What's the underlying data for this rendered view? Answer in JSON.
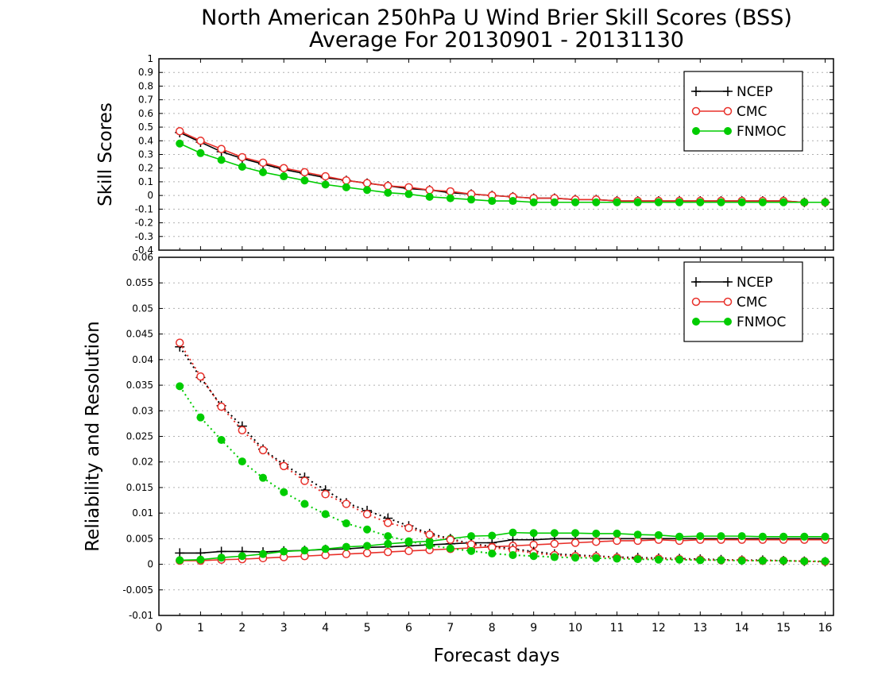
{
  "title_line1": "North American 250hPa U Wind Brier Skill Scores (BSS)",
  "title_line2": "Average For 20130901 - 20131130",
  "xlabel": "Forecast days",
  "colors": {
    "NCEP": "#000000",
    "CMC": "#e8302a",
    "FNMOC": "#00cc00",
    "grid": "#b0b0b0"
  },
  "chart_data": [
    {
      "type": "line",
      "ylabel": "Skill Scores",
      "xlim": [
        0,
        16.2
      ],
      "ylim": [
        -0.4,
        1
      ],
      "x_ticks": [
        0,
        1,
        2,
        3,
        4,
        5,
        6,
        7,
        8,
        9,
        10,
        11,
        12,
        13,
        14,
        15,
        16
      ],
      "y_ticks": [
        -0.4,
        -0.3,
        -0.2,
        -0.1,
        0,
        0.1,
        0.2,
        0.3,
        0.4,
        0.5,
        0.6,
        0.7,
        0.8,
        0.9,
        1
      ],
      "y_tick_labels": [
        "-0.4",
        "-0.3",
        "-0.2",
        "-0.1",
        "0",
        "0.1",
        "0.2",
        "0.3",
        "0.4",
        "0.5",
        "0.6",
        "0.7",
        "0.8",
        "0.9",
        "1"
      ],
      "grid": true,
      "legend": "top-right",
      "x": [
        0.5,
        1,
        1.5,
        2,
        2.5,
        3,
        3.5,
        4,
        4.5,
        5,
        5.5,
        6,
        6.5,
        7,
        7.5,
        8,
        8.5,
        9,
        9.5,
        10,
        10.5,
        11,
        11.5,
        12,
        12.5,
        13,
        13.5,
        14,
        14.5,
        15,
        15.5,
        16
      ],
      "series": [
        {
          "name": "NCEP",
          "marker": "plus",
          "dash": "none",
          "values": [
            0.46,
            0.39,
            0.32,
            0.27,
            0.23,
            0.19,
            0.16,
            0.13,
            0.11,
            0.09,
            0.07,
            0.05,
            0.04,
            0.02,
            0.01,
            0,
            -0.01,
            -0.02,
            -0.02,
            -0.03,
            -0.03,
            -0.04,
            -0.04,
            -0.04,
            -0.04,
            -0.04,
            -0.04,
            -0.04,
            -0.04,
            -0.04,
            -0.05,
            -0.05
          ]
        },
        {
          "name": "CMC",
          "marker": "circle-open",
          "dash": "none",
          "values": [
            0.47,
            0.4,
            0.34,
            0.28,
            0.24,
            0.2,
            0.17,
            0.14,
            0.11,
            0.09,
            0.07,
            0.06,
            0.04,
            0.03,
            0.01,
            0,
            -0.01,
            -0.02,
            -0.02,
            -0.03,
            -0.03,
            -0.04,
            -0.04,
            -0.04,
            -0.04,
            -0.04,
            -0.04,
            -0.04,
            -0.04,
            -0.04,
            -0.05,
            -0.05
          ]
        },
        {
          "name": "FNMOC",
          "marker": "circle-filled",
          "dash": "none",
          "values": [
            0.38,
            0.31,
            0.26,
            0.21,
            0.17,
            0.14,
            0.11,
            0.08,
            0.06,
            0.04,
            0.02,
            0.01,
            -0.01,
            -0.02,
            -0.03,
            -0.04,
            -0.04,
            -0.05,
            -0.05,
            -0.05,
            -0.05,
            -0.05,
            -0.05,
            -0.05,
            -0.05,
            -0.05,
            -0.05,
            -0.05,
            -0.05,
            -0.05,
            -0.05,
            -0.05
          ]
        }
      ]
    },
    {
      "type": "line",
      "ylabel": "Reliability and Resolution",
      "xlim": [
        0,
        16.2
      ],
      "ylim": [
        -0.01,
        0.06
      ],
      "x_ticks": [
        0,
        1,
        2,
        3,
        4,
        5,
        6,
        7,
        8,
        9,
        10,
        11,
        12,
        13,
        14,
        15,
        16
      ],
      "y_ticks": [
        -0.01,
        -0.005,
        0,
        0.005,
        0.01,
        0.015,
        0.02,
        0.025,
        0.03,
        0.035,
        0.04,
        0.045,
        0.05,
        0.055,
        0.06
      ],
      "y_tick_labels": [
        "-0.01",
        "-0.005",
        "0",
        "0.005",
        "0.01",
        "0.015",
        "0.02",
        "0.025",
        "0.03",
        "0.035",
        "0.04",
        "0.045",
        "0.05",
        "0.055",
        "0.06"
      ],
      "grid": true,
      "legend": "top-right",
      "x": [
        0.5,
        1,
        1.5,
        2,
        2.5,
        3,
        3.5,
        4,
        4.5,
        5,
        5.5,
        6,
        6.5,
        7,
        7.5,
        8,
        8.5,
        9,
        9.5,
        10,
        10.5,
        11,
        11.5,
        12,
        12.5,
        13,
        13.5,
        14,
        14.5,
        15,
        15.5,
        16
      ],
      "series": [
        {
          "name": "NCEP",
          "marker": "plus",
          "dash": "none",
          "values": [
            0.0022,
            0.0022,
            0.0025,
            0.0025,
            0.0024,
            0.0026,
            0.0027,
            0.0029,
            0.003,
            0.0033,
            0.0034,
            0.0036,
            0.0038,
            0.004,
            0.0042,
            0.0042,
            0.0048,
            0.0048,
            0.005,
            0.005,
            0.005,
            0.005,
            0.005,
            0.005,
            0.005,
            0.005,
            0.005,
            0.005,
            0.005,
            0.005,
            0.005,
            0.005
          ]
        },
        {
          "name": "CMC",
          "marker": "circle-open",
          "dash": "none",
          "values": [
            0.0007,
            0.0007,
            0.0009,
            0.001,
            0.0012,
            0.0014,
            0.0016,
            0.0018,
            0.002,
            0.0022,
            0.0024,
            0.0026,
            0.0028,
            0.003,
            0.0032,
            0.0034,
            0.0036,
            0.0038,
            0.004,
            0.0042,
            0.0044,
            0.0046,
            0.0046,
            0.0048,
            0.0046,
            0.0048,
            0.0048,
            0.0048,
            0.0048,
            0.0048,
            0.0048,
            0.0048
          ]
        },
        {
          "name": "FNMOC",
          "marker": "circle-filled",
          "dash": "none",
          "values": [
            0.0008,
            0.0009,
            0.0013,
            0.0016,
            0.002,
            0.0025,
            0.0027,
            0.003,
            0.0034,
            0.0036,
            0.004,
            0.0043,
            0.0045,
            0.005,
            0.0055,
            0.0056,
            0.0062,
            0.0061,
            0.0061,
            0.0061,
            0.006,
            0.006,
            0.0058,
            0.0057,
            0.0054,
            0.0055,
            0.0055,
            0.0055,
            0.0054,
            0.0054,
            0.0054,
            0.0054
          ]
        },
        {
          "name": "NCEP",
          "marker": "plus",
          "dash": "dotted",
          "values": [
            0.0425,
            0.0365,
            0.031,
            0.027,
            0.0225,
            0.0195,
            0.017,
            0.0145,
            0.012,
            0.0105,
            0.009,
            0.0075,
            0.006,
            0.005,
            0.004,
            0.0035,
            0.003,
            0.0025,
            0.002,
            0.0018,
            0.0016,
            0.0014,
            0.0013,
            0.0012,
            0.0011,
            0.001,
            0.0009,
            0.0008,
            0.0008,
            0.0007,
            0.0006,
            0.0005
          ]
        },
        {
          "name": "CMC",
          "marker": "circle-open",
          "dash": "dotted",
          "values": [
            0.0433,
            0.0367,
            0.0308,
            0.0262,
            0.0223,
            0.0192,
            0.0163,
            0.0137,
            0.0118,
            0.0098,
            0.0081,
            0.0071,
            0.0058,
            0.0048,
            0.0039,
            0.0033,
            0.0028,
            0.0022,
            0.0018,
            0.0016,
            0.0015,
            0.0013,
            0.0011,
            0.0011,
            0.001,
            0.0009,
            0.0008,
            0.0008,
            0.0007,
            0.0007,
            0.0006,
            0.0005
          ]
        },
        {
          "name": "FNMOC",
          "marker": "circle-filled",
          "dash": "dotted",
          "values": [
            0.0348,
            0.0287,
            0.0243,
            0.0201,
            0.0169,
            0.0141,
            0.0118,
            0.0098,
            0.008,
            0.0068,
            0.0055,
            0.0045,
            0.0037,
            0.0031,
            0.0026,
            0.0021,
            0.0018,
            0.0016,
            0.0014,
            0.0013,
            0.0012,
            0.0011,
            0.001,
            0.0009,
            0.0009,
            0.0008,
            0.0008,
            0.0007,
            0.0007,
            0.0007,
            0.0006,
            0.0006
          ]
        }
      ]
    }
  ]
}
